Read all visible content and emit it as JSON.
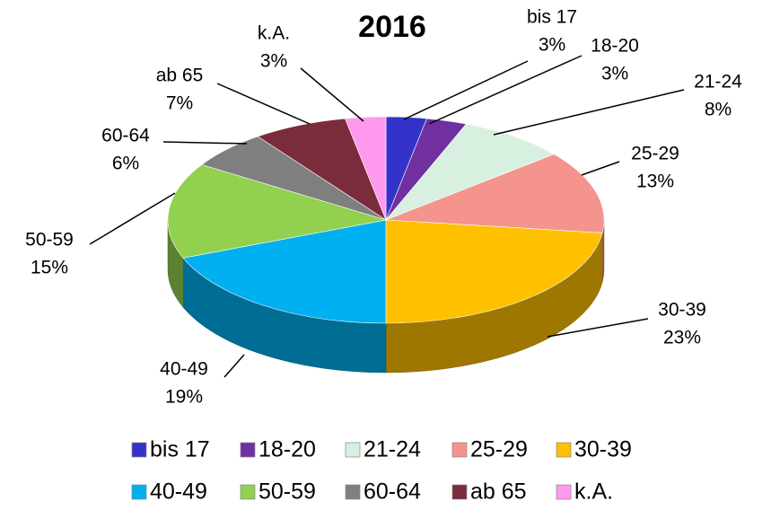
{
  "chart_data": {
    "type": "pie",
    "title": "2016",
    "categories": [
      "bis 17",
      "18-20",
      "21-24",
      "25-29",
      "30-39",
      "40-49",
      "50-59",
      "60-64",
      "ab 65",
      "k.A."
    ],
    "values": [
      3,
      3,
      8,
      13,
      23,
      19,
      15,
      6,
      7,
      3
    ],
    "value_labels": [
      "3%",
      "3%",
      "8%",
      "13%",
      "23%",
      "19%",
      "15%",
      "6%",
      "7%",
      "3%"
    ],
    "colors": [
      "#3333cc",
      "#7030a0",
      "#d8f0e0",
      "#f4948c",
      "#ffc000",
      "#00b0f0",
      "#92d050",
      "#7f7f7f",
      "#7b2c3c",
      "#ff99ee"
    ],
    "legend": "bottom"
  }
}
